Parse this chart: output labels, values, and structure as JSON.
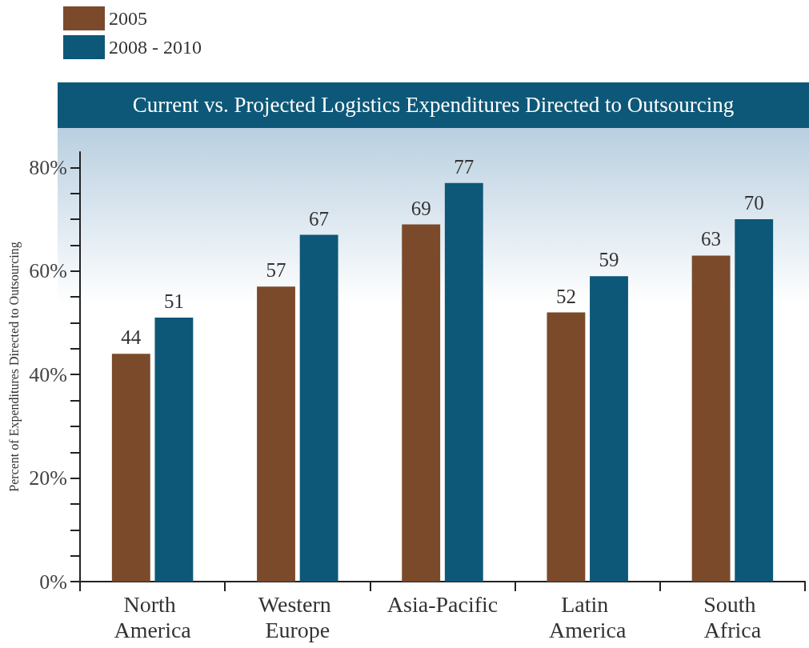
{
  "chart_data": {
    "type": "bar",
    "title": "Current vs. Projected Logistics Expenditures Directed to Outsourcing",
    "ylabel": "Percent of Expenditures Directed to Outsourcing",
    "categories": [
      "North America",
      "Western Europe",
      "Asia-Pacific",
      "Latin America",
      "South Africa"
    ],
    "series": [
      {
        "name": "2005",
        "color": "#7a4a2b",
        "values": [
          44,
          57,
          69,
          52,
          63
        ]
      },
      {
        "name": "2008 - 2010",
        "color": "#0d5878",
        "values": [
          51,
          67,
          77,
          59,
          70
        ]
      }
    ],
    "ylim": [
      0,
      83
    ],
    "yticks": [
      {
        "value": 0,
        "label": "0%"
      },
      {
        "value": 5,
        "label": null
      },
      {
        "value": 10,
        "label": null
      },
      {
        "value": 15,
        "label": null
      },
      {
        "value": 20,
        "label": "20%"
      },
      {
        "value": 25,
        "label": null
      },
      {
        "value": 30,
        "label": null
      },
      {
        "value": 35,
        "label": null
      },
      {
        "value": 40,
        "label": "40%"
      },
      {
        "value": 45,
        "label": null
      },
      {
        "value": 50,
        "label": null
      },
      {
        "value": 55,
        "label": null
      },
      {
        "value": 60,
        "label": "60%"
      },
      {
        "value": 65,
        "label": null
      },
      {
        "value": 70,
        "label": null
      },
      {
        "value": 75,
        "label": null
      },
      {
        "value": 80,
        "label": "80%"
      }
    ],
    "data_labels": true,
    "grid": false,
    "legend": "top left"
  }
}
